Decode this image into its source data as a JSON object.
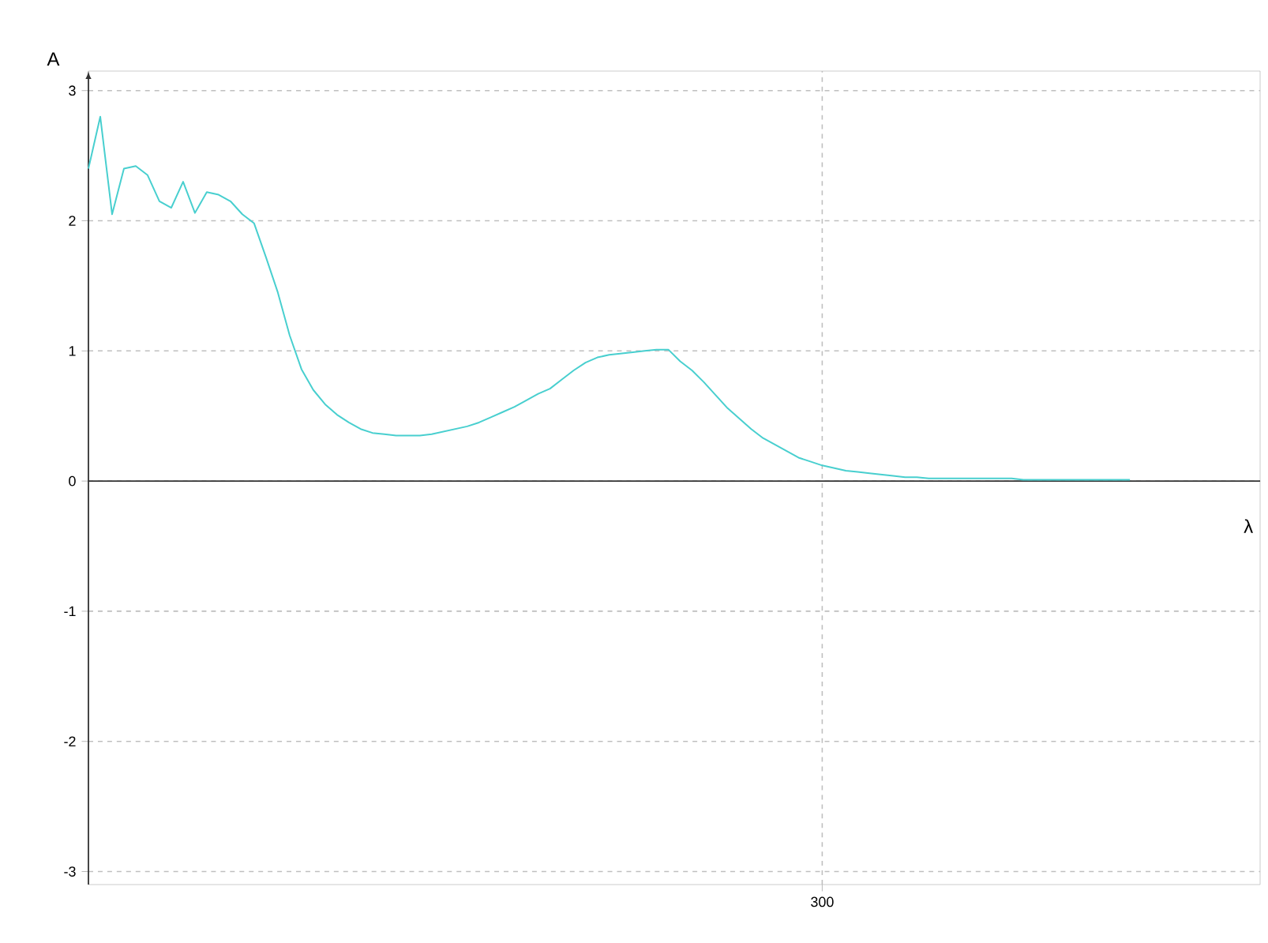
{
  "chart_data": {
    "type": "line",
    "xlabel": "λ",
    "ylabel": "A",
    "categories": [
      null,
      null,
      null,
      null,
      null,
      null,
      null,
      null,
      null,
      null,
      null,
      null,
      null,
      null,
      null,
      null,
      null,
      null,
      null,
      null,
      null,
      null,
      null,
      null,
      null,
      null,
      null,
      null,
      null,
      null,
      null,
      null,
      null,
      null,
      null,
      null,
      null,
      null,
      null,
      null,
      null,
      null,
      null,
      null,
      null,
      null,
      null,
      null,
      null,
      null,
      null,
      null,
      null,
      null,
      null,
      null,
      null,
      null,
      null,
      null,
      null,
      null,
      "300",
      null,
      null,
      null,
      null,
      null,
      null,
      null,
      null,
      null,
      null,
      null,
      null,
      null,
      null,
      null,
      null,
      null,
      null,
      null,
      null,
      null,
      null,
      null,
      null,
      null,
      null,
      null,
      null,
      null,
      null,
      null,
      null,
      null,
      null,
      null,
      null,
      null
    ],
    "series": [
      {
        "color": "#48cfcf",
        "values": [
          2.4,
          2.8,
          2.05,
          2.4,
          2.42,
          2.35,
          2.15,
          2.1,
          2.3,
          2.06,
          2.22,
          2.2,
          2.15,
          2.05,
          1.98,
          1.72,
          1.45,
          1.12,
          0.86,
          0.7,
          0.59,
          0.51,
          0.45,
          0.4,
          0.37,
          0.36,
          0.35,
          0.35,
          0.35,
          0.36,
          0.38,
          0.4,
          0.42,
          0.45,
          0.49,
          0.53,
          0.57,
          0.62,
          0.67,
          0.71,
          0.78,
          0.85,
          0.91,
          0.95,
          0.97,
          0.98,
          0.99,
          1.0,
          1.01,
          1.01,
          0.92,
          0.85,
          0.76,
          0.66,
          0.56,
          0.48,
          0.4,
          0.33,
          0.28,
          0.23,
          0.18,
          0.15,
          0.12,
          0.1,
          0.08,
          0.07,
          0.06,
          0.05,
          0.04,
          0.03,
          0.03,
          0.02,
          0.02,
          0.02,
          0.02,
          0.02,
          0.02,
          0.02,
          0.02,
          0.01,
          0.01,
          0.01,
          0.01,
          0.01,
          0.01,
          0.01,
          0.01,
          0.01,
          0.01,
          null,
          null,
          null,
          null,
          null,
          null,
          null,
          null,
          null,
          null,
          null
        ]
      }
    ],
    "ylim": [
      -3.1,
      3.15
    ],
    "yticks": [
      -3,
      -2,
      -1,
      0,
      1,
      2,
      3
    ],
    "grid": true
  }
}
